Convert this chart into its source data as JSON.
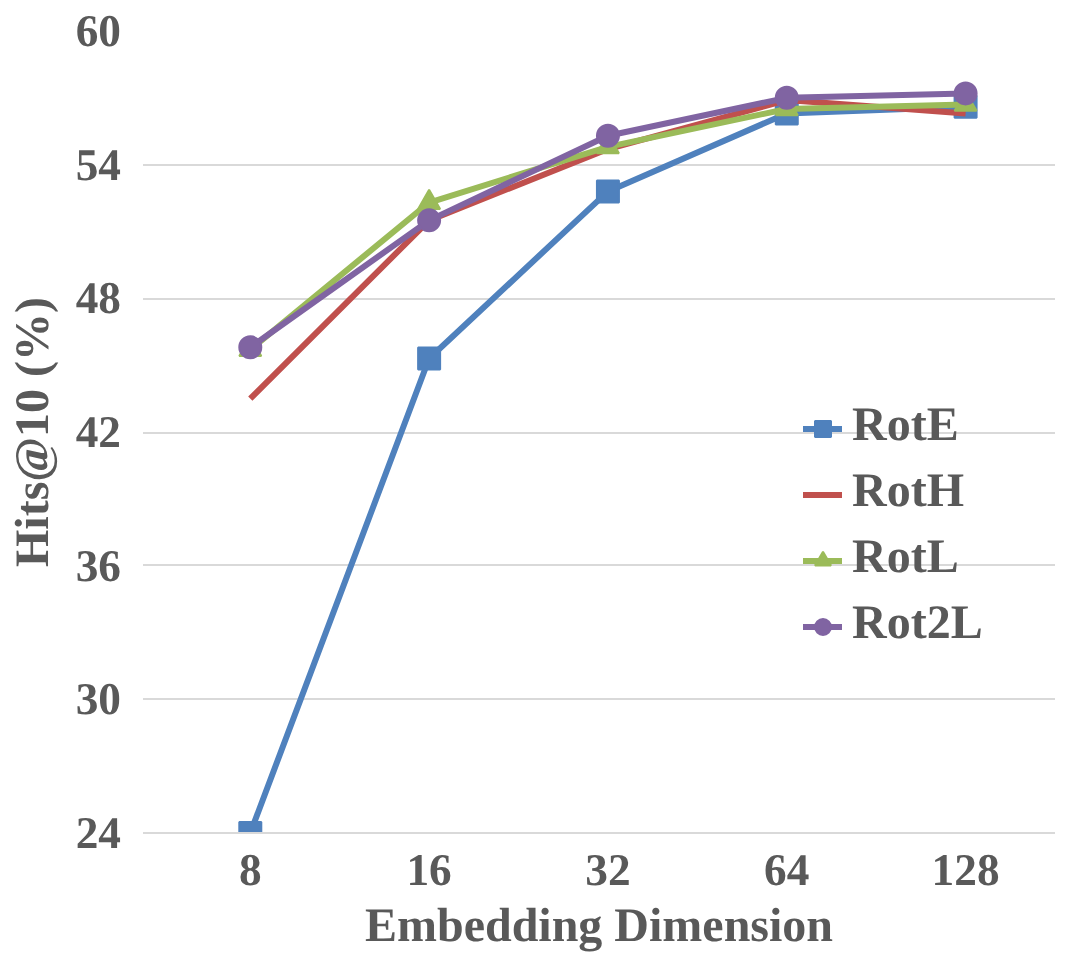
{
  "chart_data": {
    "type": "line",
    "xlabel": "Embedding Dimension",
    "ylabel": "Hits@10 (%)",
    "categories": [
      "8",
      "16",
      "32",
      "64",
      "128"
    ],
    "series": [
      {
        "name": "RotE",
        "color": "#4f81bd",
        "marker": "square",
        "values": [
          24.0,
          45.3,
          52.8,
          56.3,
          56.6
        ]
      },
      {
        "name": "RotH",
        "color": "#c0504d",
        "marker": "none",
        "values": [
          43.5,
          51.5,
          54.7,
          56.9,
          56.3
        ]
      },
      {
        "name": "RotL",
        "color": "#9bbb59",
        "marker": "triangle",
        "values": [
          45.7,
          52.3,
          54.8,
          56.5,
          56.7
        ]
      },
      {
        "name": "Rot2L",
        "color": "#8064a2",
        "marker": "circle",
        "values": [
          45.8,
          51.5,
          55.3,
          57.0,
          57.2
        ]
      }
    ],
    "ylim": [
      24,
      60
    ],
    "yticks": [
      24,
      30,
      36,
      42,
      48,
      54,
      60
    ],
    "grid": "y",
    "legend": "right",
    "line_style": "solid"
  }
}
